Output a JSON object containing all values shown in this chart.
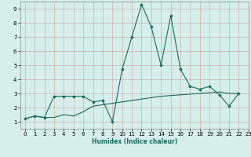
{
  "xlabel": "Humidex (Indice chaleur)",
  "xlim": [
    -0.5,
    23
  ],
  "ylim": [
    0.5,
    9.5
  ],
  "yticks": [
    1,
    2,
    3,
    4,
    5,
    6,
    7,
    8,
    9
  ],
  "xticks": [
    0,
    1,
    2,
    3,
    4,
    5,
    6,
    7,
    8,
    9,
    10,
    11,
    12,
    13,
    14,
    15,
    16,
    17,
    18,
    19,
    20,
    21,
    22,
    23
  ],
  "bg_color": "#d6efea",
  "line_color": "#1a6b5e",
  "line1_x": [
    0,
    1,
    2,
    3,
    4,
    5,
    6,
    7,
    8,
    9,
    10,
    11,
    12,
    13,
    14,
    15,
    16,
    17,
    18,
    19,
    20,
    21,
    22
  ],
  "line1_y": [
    1.2,
    1.4,
    1.3,
    2.8,
    2.8,
    2.8,
    2.8,
    2.4,
    2.5,
    1.0,
    4.7,
    7.0,
    9.3,
    7.7,
    5.0,
    8.5,
    4.7,
    3.5,
    3.3,
    3.5,
    2.9,
    2.1,
    3.0
  ],
  "line2_x": [
    0,
    1,
    2,
    3,
    4,
    5,
    6,
    7,
    8,
    9,
    10,
    11,
    12,
    13,
    14,
    15,
    16,
    17,
    18,
    19,
    20,
    21,
    22
  ],
  "line2_y": [
    1.2,
    1.4,
    1.3,
    1.3,
    1.5,
    1.4,
    1.7,
    2.1,
    2.2,
    2.3,
    2.4,
    2.5,
    2.6,
    2.7,
    2.8,
    2.85,
    2.9,
    2.95,
    3.0,
    3.05,
    3.1,
    3.0,
    3.0
  ]
}
